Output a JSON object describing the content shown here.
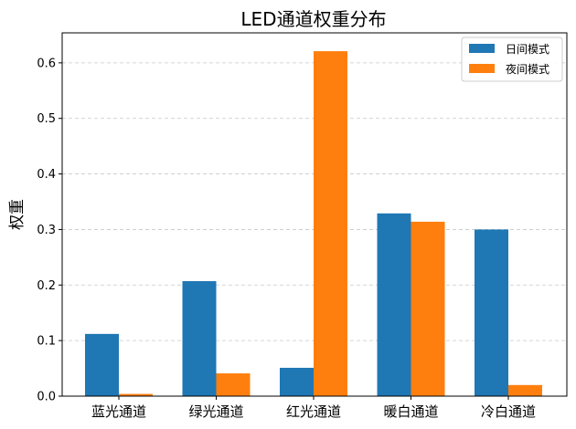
{
  "chart_data": {
    "type": "bar",
    "title": "LED通道权重分布",
    "xlabel": "",
    "ylabel": "权重",
    "categories": [
      "蓝光通道",
      "绿光通道",
      "红光通道",
      "暖白通道",
      "冷白通道"
    ],
    "series": [
      {
        "name": "日间模式",
        "color": "#1f77b4",
        "values": [
          0.112,
          0.207,
          0.051,
          0.329,
          0.3
        ]
      },
      {
        "name": "夜间模式",
        "color": "#ff7f0e",
        "values": [
          0.004,
          0.041,
          0.621,
          0.314,
          0.02
        ]
      }
    ],
    "ylim": [
      0,
      0.654
    ],
    "yticks": [
      "0.0",
      "0.1",
      "0.2",
      "0.3",
      "0.4",
      "0.5",
      "0.6"
    ],
    "grid": true,
    "legend_position": "top-right"
  }
}
